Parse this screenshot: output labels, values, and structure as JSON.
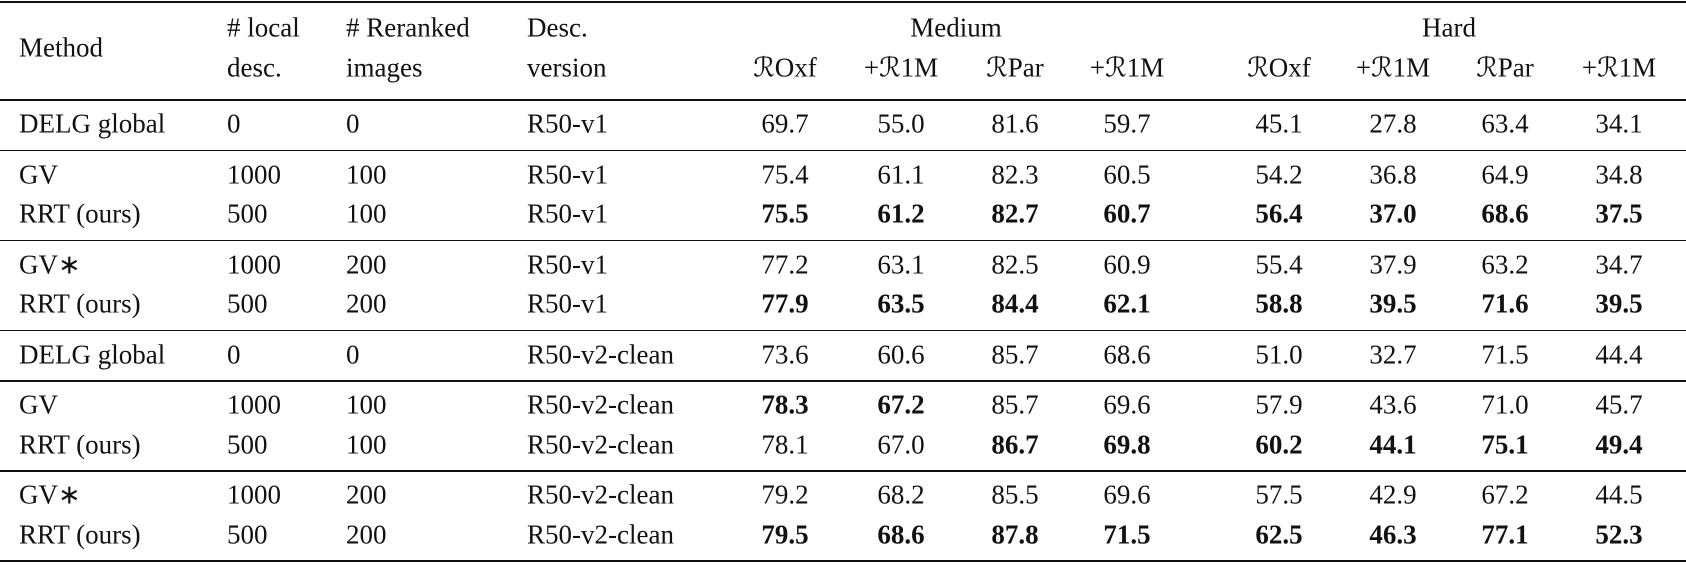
{
  "header": {
    "method": "Method",
    "local": [
      "# local",
      "desc."
    ],
    "reranked": [
      "# Reranked",
      "images"
    ],
    "version": [
      "Desc.",
      "version"
    ],
    "groups": [
      {
        "name": "Medium",
        "metrics": [
          "ℛOxf",
          "+ℛ1M",
          "ℛPar",
          "+ℛ1M"
        ]
      },
      {
        "name": "Hard",
        "metrics": [
          "ℛOxf",
          "+ℛ1M",
          "ℛPar",
          "+ℛ1M"
        ]
      }
    ]
  },
  "table": {
    "groups": [
      [
        {
          "method": "DELG global",
          "local": "0",
          "reranked": "0",
          "version": "R50-v1",
          "values": [
            "69.7",
            "55.0",
            "81.6",
            "59.7",
            "45.1",
            "27.8",
            "63.4",
            "34.1"
          ],
          "bold": [
            false,
            false,
            false,
            false,
            false,
            false,
            false,
            false
          ]
        }
      ],
      [
        {
          "method": "GV",
          "local": "1000",
          "reranked": "100",
          "version": "R50-v1",
          "values": [
            "75.4",
            "61.1",
            "82.3",
            "60.5",
            "54.2",
            "36.8",
            "64.9",
            "34.8"
          ],
          "bold": [
            false,
            false,
            false,
            false,
            false,
            false,
            false,
            false
          ]
        },
        {
          "method": "RRT (ours)",
          "local": "500",
          "reranked": "100",
          "version": "R50-v1",
          "values": [
            "75.5",
            "61.2",
            "82.7",
            "60.7",
            "56.4",
            "37.0",
            "68.6",
            "37.5"
          ],
          "bold": [
            true,
            true,
            true,
            true,
            true,
            true,
            true,
            true
          ]
        }
      ],
      [
        {
          "method": "GV∗",
          "local": "1000",
          "reranked": "200",
          "version": "R50-v1",
          "values": [
            "77.2",
            "63.1",
            "82.5",
            "60.9",
            "55.4",
            "37.9",
            "63.2",
            "34.7"
          ],
          "bold": [
            false,
            false,
            false,
            false,
            false,
            false,
            false,
            false
          ]
        },
        {
          "method": "RRT (ours)",
          "local": "500",
          "reranked": "200",
          "version": "R50-v1",
          "values": [
            "77.9",
            "63.5",
            "84.4",
            "62.1",
            "58.8",
            "39.5",
            "71.6",
            "39.5"
          ],
          "bold": [
            true,
            true,
            true,
            true,
            true,
            true,
            true,
            true
          ]
        }
      ],
      [
        {
          "method": "DELG global",
          "local": "0",
          "reranked": "0",
          "version": "R50-v2-clean",
          "values": [
            "73.6",
            "60.6",
            "85.7",
            "68.6",
            "51.0",
            "32.7",
            "71.5",
            "44.4"
          ],
          "bold": [
            false,
            false,
            false,
            false,
            false,
            false,
            false,
            false
          ]
        }
      ],
      [
        {
          "method": "GV",
          "local": "1000",
          "reranked": "100",
          "version": "R50-v2-clean",
          "values": [
            "78.3",
            "67.2",
            "85.7",
            "69.6",
            "57.9",
            "43.6",
            "71.0",
            "45.7"
          ],
          "bold": [
            true,
            true,
            false,
            false,
            false,
            false,
            false,
            false
          ]
        },
        {
          "method": "RRT (ours)",
          "local": "500",
          "reranked": "100",
          "version": "R50-v2-clean",
          "values": [
            "78.1",
            "67.0",
            "86.7",
            "69.8",
            "60.2",
            "44.1",
            "75.1",
            "49.4"
          ],
          "bold": [
            false,
            false,
            true,
            true,
            true,
            true,
            true,
            true
          ]
        }
      ],
      [
        {
          "method": "GV∗",
          "local": "1000",
          "reranked": "200",
          "version": "R50-v2-clean",
          "values": [
            "79.2",
            "68.2",
            "85.5",
            "69.6",
            "57.5",
            "42.9",
            "67.2",
            "44.5"
          ],
          "bold": [
            false,
            false,
            false,
            false,
            false,
            false,
            false,
            false
          ]
        },
        {
          "method": "RRT (ours)",
          "local": "500",
          "reranked": "200",
          "version": "R50-v2-clean",
          "values": [
            "79.5",
            "68.6",
            "87.8",
            "71.5",
            "62.5",
            "46.3",
            "77.1",
            "52.3"
          ],
          "bold": [
            true,
            true,
            true,
            true,
            true,
            true,
            true,
            true
          ]
        }
      ]
    ]
  }
}
